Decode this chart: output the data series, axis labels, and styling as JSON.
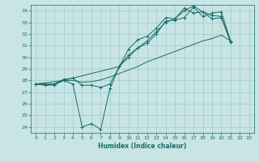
{
  "xlabel": "Humidex (Indice chaleur)",
  "xlim": [
    -0.5,
    23.5
  ],
  "ylim": [
    23.5,
    34.5
  ],
  "yticks": [
    24,
    25,
    26,
    27,
    28,
    29,
    30,
    31,
    32,
    33,
    34
  ],
  "xticks": [
    0,
    1,
    2,
    3,
    4,
    5,
    6,
    7,
    8,
    9,
    10,
    11,
    12,
    13,
    14,
    15,
    16,
    17,
    18,
    19,
    20,
    21,
    22,
    23
  ],
  "background_color": "#c8e4e4",
  "grid_color": "#a0cccc",
  "line_color": "#1a6b6b",
  "line1_x": [
    0,
    1,
    2,
    3,
    4,
    5,
    6,
    7,
    8,
    9,
    10,
    11,
    12,
    13,
    14,
    15,
    16,
    17,
    18,
    19,
    20,
    21
  ],
  "line1_y": [
    27.7,
    27.6,
    27.6,
    28.0,
    27.7,
    24.0,
    24.3,
    23.8,
    27.3,
    29.2,
    30.7,
    31.5,
    31.8,
    32.5,
    33.4,
    33.3,
    34.2,
    33.8,
    33.9,
    33.3,
    33.4,
    31.3
  ],
  "line2_x": [
    0,
    1,
    2,
    3,
    4,
    5,
    6,
    7,
    8,
    9,
    10,
    11,
    12,
    13,
    14,
    15,
    16,
    17,
    18,
    19,
    20,
    21
  ],
  "line2_y": [
    27.7,
    27.7,
    27.7,
    28.1,
    28.2,
    27.6,
    27.6,
    27.4,
    27.7,
    29.2,
    30.2,
    30.8,
    31.2,
    32.0,
    33.1,
    33.2,
    33.4,
    34.3,
    33.5,
    33.8,
    33.9,
    31.4
  ],
  "line3_x": [
    0,
    3,
    9,
    10,
    11,
    12,
    13,
    14,
    15,
    16,
    17,
    18,
    19,
    20,
    21
  ],
  "line3_y": [
    27.7,
    28.0,
    29.2,
    30.0,
    30.8,
    31.4,
    32.2,
    33.0,
    33.3,
    34.0,
    34.4,
    33.9,
    33.6,
    33.5,
    31.3
  ],
  "line4_x": [
    0,
    1,
    2,
    3,
    4,
    5,
    6,
    7,
    8,
    9,
    10,
    11,
    12,
    13,
    14,
    15,
    16,
    17,
    18,
    19,
    20,
    21
  ],
  "line4_y": [
    27.7,
    27.6,
    27.7,
    28.0,
    28.0,
    27.85,
    27.9,
    28.05,
    28.3,
    28.6,
    28.9,
    29.2,
    29.6,
    29.9,
    30.2,
    30.5,
    30.8,
    31.1,
    31.4,
    31.6,
    31.9,
    31.4
  ]
}
